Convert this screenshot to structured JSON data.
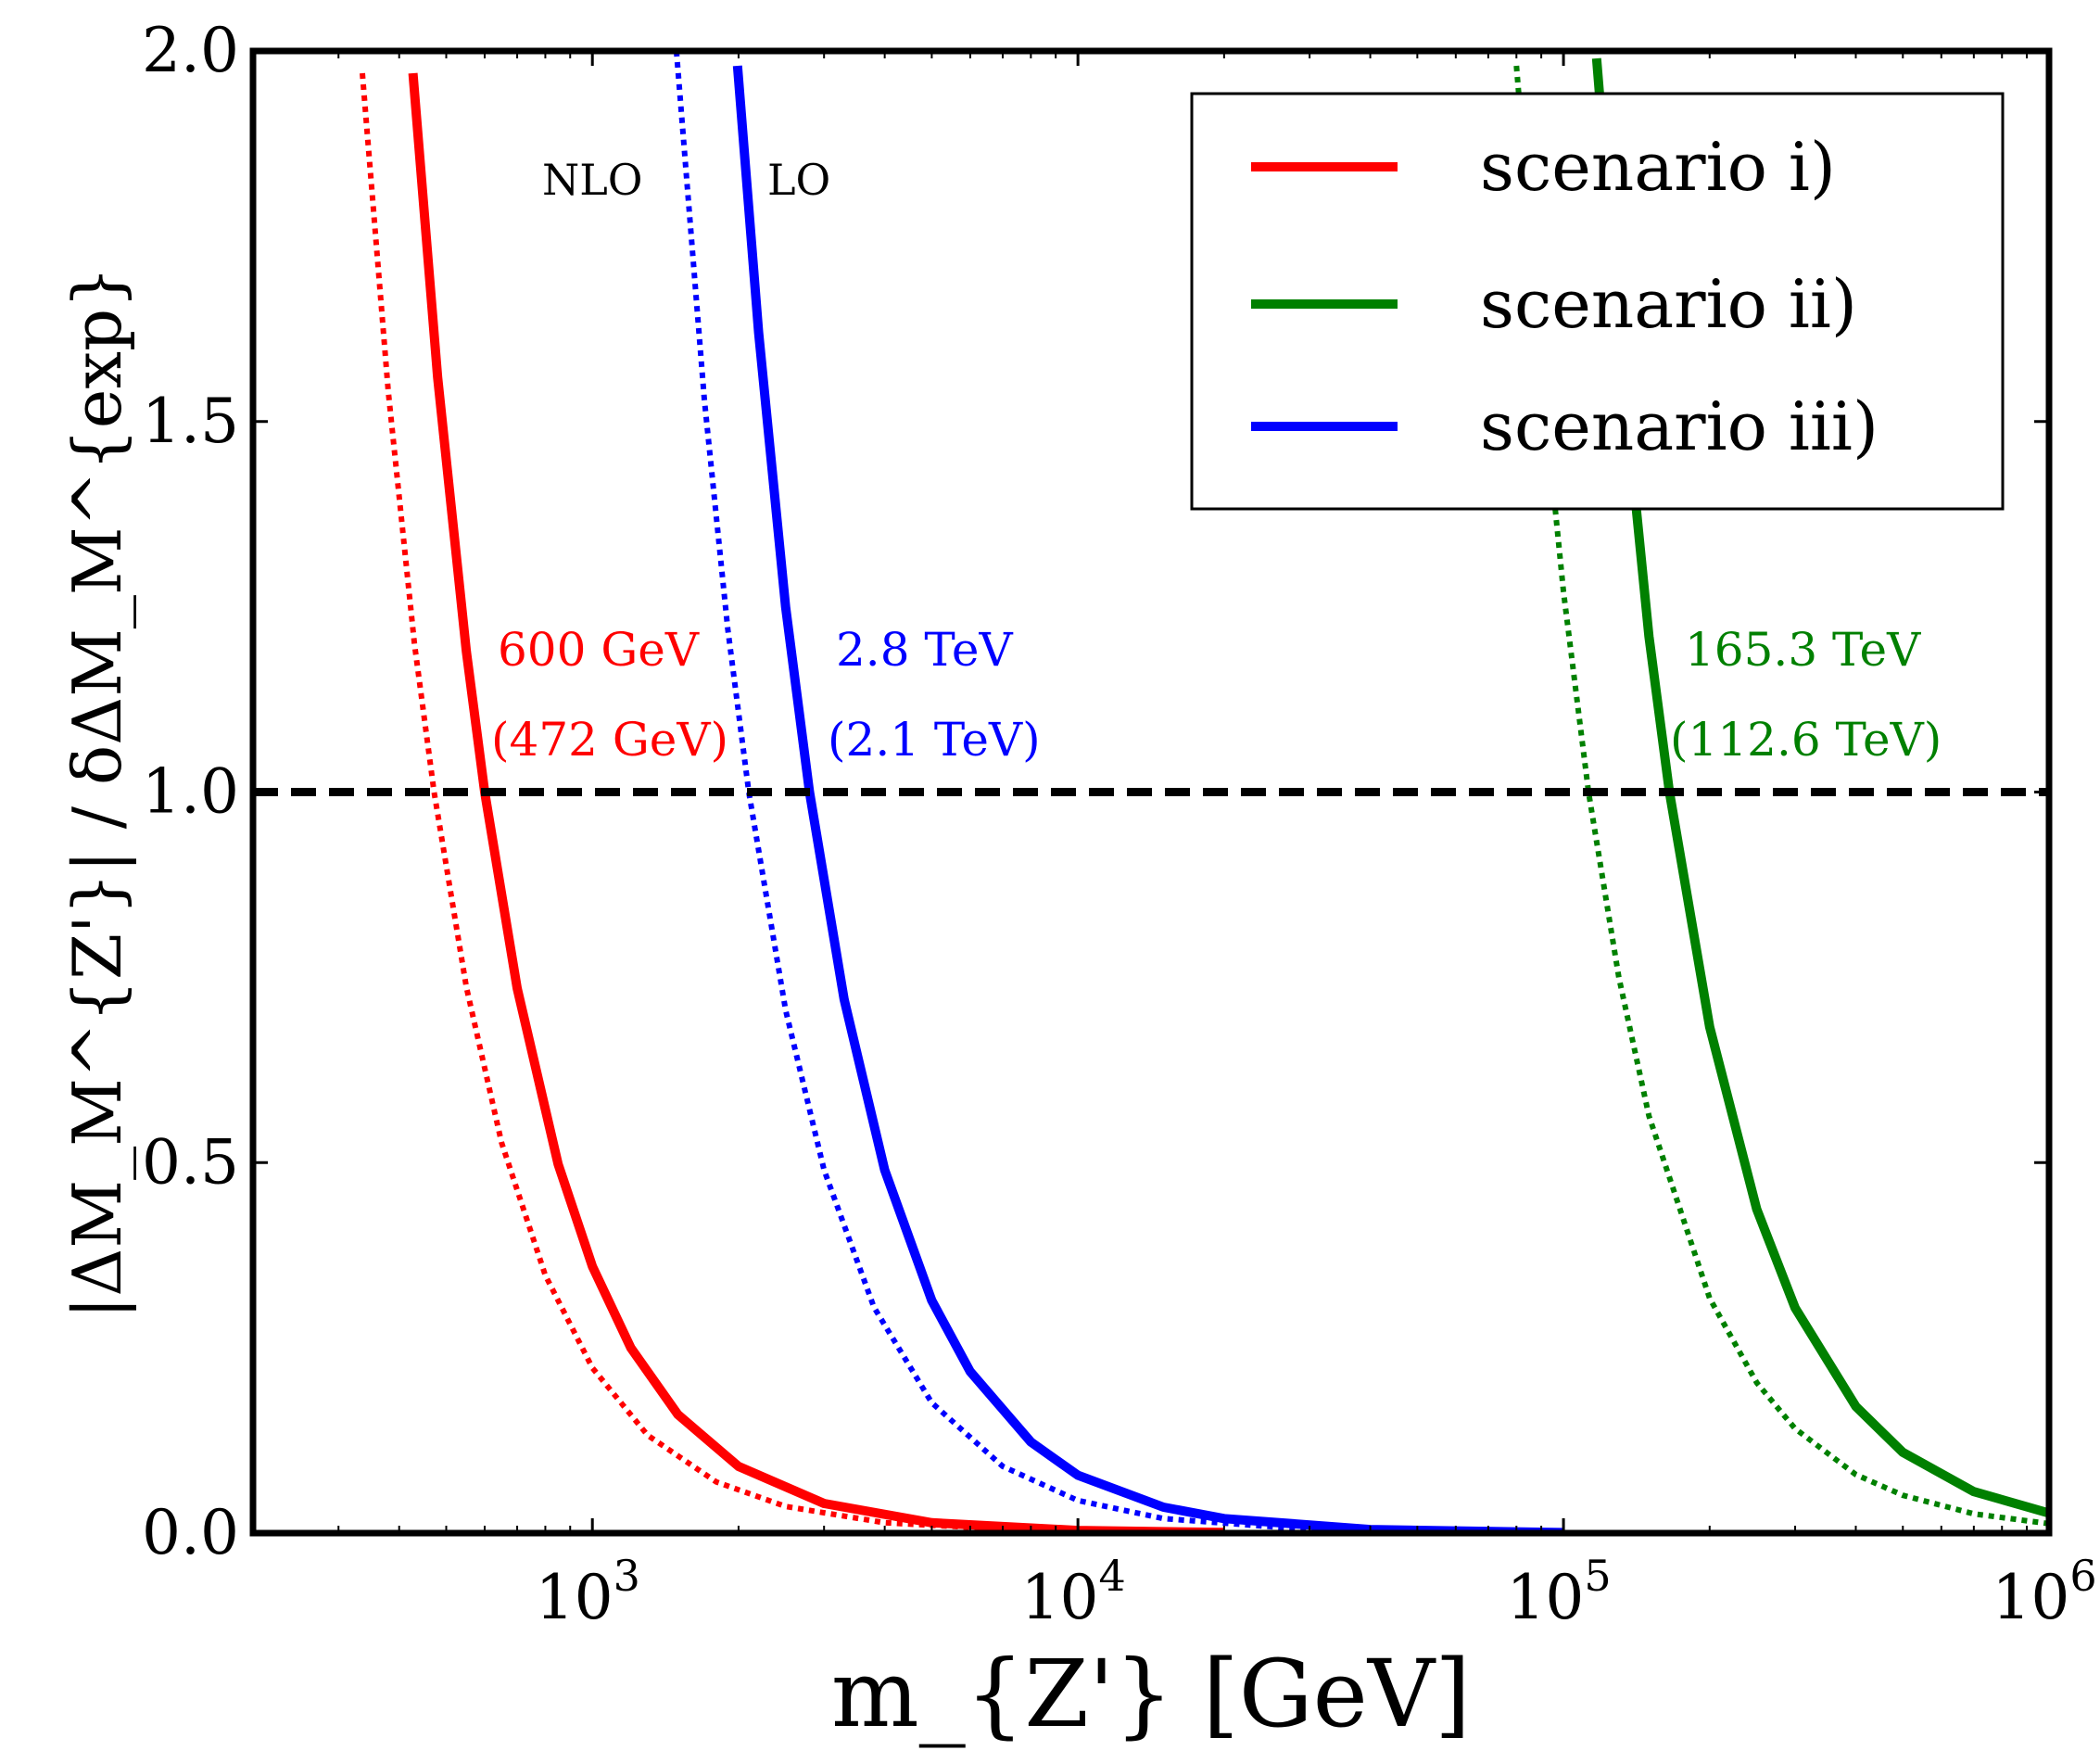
{
  "chart_data": {
    "type": "line",
    "xlabel": "m_{Z'} [GeV]",
    "ylabel": "|ΔM_M^{Z'}| / δΔM_M^{exp}",
    "xscale": "log",
    "xlim": [
      200,
      1000000
    ],
    "ylim": [
      0,
      2.0
    ],
    "yticks": [
      {
        "value": 0.0,
        "label": "0.0"
      },
      {
        "value": 0.5,
        "label": "0.5"
      },
      {
        "value": 1.0,
        "label": "1.0"
      },
      {
        "value": 1.5,
        "label": "1.5"
      },
      {
        "value": 2.0,
        "label": "2.0"
      }
    ],
    "xticks": [
      {
        "value": 1000,
        "base": "10",
        "exp": "3"
      },
      {
        "value": 10000,
        "base": "10",
        "exp": "4"
      },
      {
        "value": 100000,
        "base": "10",
        "exp": "5"
      },
      {
        "value": 1000000,
        "base": "10",
        "exp": "6"
      }
    ],
    "reference_line": {
      "y": 1.0,
      "style": "dashed",
      "color": "#000000"
    },
    "legend": {
      "placement": "top-right",
      "entries": [
        {
          "label": "scenario i)",
          "color": "#ff0000"
        },
        {
          "label": "scenario ii)",
          "color": "#008000"
        },
        {
          "label": "scenario iii)",
          "color": "#0000ff"
        }
      ]
    },
    "series": [
      {
        "name": "scenario i)",
        "order": "LO",
        "style": "solid",
        "color": "#ff0000",
        "crossing": 600,
        "x": [
          427,
          480,
          550,
          600,
          700,
          850,
          1000,
          1200,
          1500,
          2000,
          3000,
          5000,
          10000,
          20000
        ],
        "y": [
          1.97,
          1.56,
          1.19,
          1.0,
          0.735,
          0.498,
          0.36,
          0.25,
          0.16,
          0.09,
          0.04,
          0.014,
          0.0036,
          0.0009
        ]
      },
      {
        "name": "scenario i)",
        "order": "NLO",
        "style": "dotted",
        "color": "#ff0000",
        "crossing": 472,
        "x": [
          336,
          380,
          430,
          472,
          550,
          650,
          800,
          1000,
          1300,
          1800,
          2500,
          4000,
          8000,
          15000
        ],
        "y": [
          1.97,
          1.54,
          1.2,
          1.0,
          0.737,
          0.527,
          0.348,
          0.223,
          0.132,
          0.069,
          0.036,
          0.014,
          0.0035,
          0.001
        ]
      },
      {
        "name": "scenario iii)",
        "order": "LO",
        "style": "solid",
        "color": "#0000ff",
        "crossing": 2800,
        "x": [
          1990,
          2200,
          2500,
          2800,
          3300,
          4000,
          5000,
          6000,
          8000,
          10000,
          15000,
          20000,
          40000,
          100000
        ],
        "y": [
          1.98,
          1.62,
          1.25,
          1.0,
          0.72,
          0.49,
          0.314,
          0.218,
          0.123,
          0.078,
          0.035,
          0.0196,
          0.0049,
          0.0008
        ]
      },
      {
        "name": "scenario iii)",
        "order": "NLO",
        "style": "dotted",
        "color": "#0000ff",
        "crossing": 2100,
        "x": [
          1490,
          1700,
          1900,
          2100,
          2500,
          3000,
          3800,
          5000,
          7000,
          10000,
          15000,
          30000,
          80000
        ],
        "y": [
          2.0,
          1.53,
          1.22,
          1.0,
          0.706,
          0.49,
          0.305,
          0.176,
          0.09,
          0.044,
          0.0196,
          0.0049,
          0.0007
        ]
      },
      {
        "name": "scenario ii)",
        "order": "LO",
        "style": "solid",
        "color": "#008000",
        "crossing": 165300,
        "x": [
          117000,
          130000,
          150000,
          165300,
          200000,
          250000,
          300000,
          400000,
          500000,
          700000,
          1000000
        ],
        "y": [
          1.99,
          1.62,
          1.21,
          1.0,
          0.683,
          0.437,
          0.304,
          0.171,
          0.109,
          0.056,
          0.027
        ]
      },
      {
        "name": "scenario ii)",
        "order": "NLO",
        "style": "dotted",
        "color": "#008000",
        "crossing": 112600,
        "x": [
          80000,
          90000,
          100000,
          112600,
          130000,
          150000,
          200000,
          250000,
          300000,
          400000,
          500000,
          700000,
          1000000
        ],
        "y": [
          1.98,
          1.57,
          1.27,
          1.0,
          0.75,
          0.563,
          0.317,
          0.203,
          0.141,
          0.079,
          0.051,
          0.026,
          0.0127
        ]
      }
    ],
    "annotations": [
      {
        "text": "NLO",
        "color": "#000000"
      },
      {
        "text": "LO",
        "color": "#000000"
      },
      {
        "text": "600 GeV",
        "color": "#ff0000"
      },
      {
        "text": "(472 GeV)",
        "color": "#ff0000"
      },
      {
        "text": "2.8 TeV",
        "color": "#0000ff"
      },
      {
        "text": "(2.1 TeV)",
        "color": "#0000ff"
      },
      {
        "text": "165.3 TeV",
        "color": "#008000"
      },
      {
        "text": "(112.6 TeV)",
        "color": "#008000"
      }
    ]
  }
}
